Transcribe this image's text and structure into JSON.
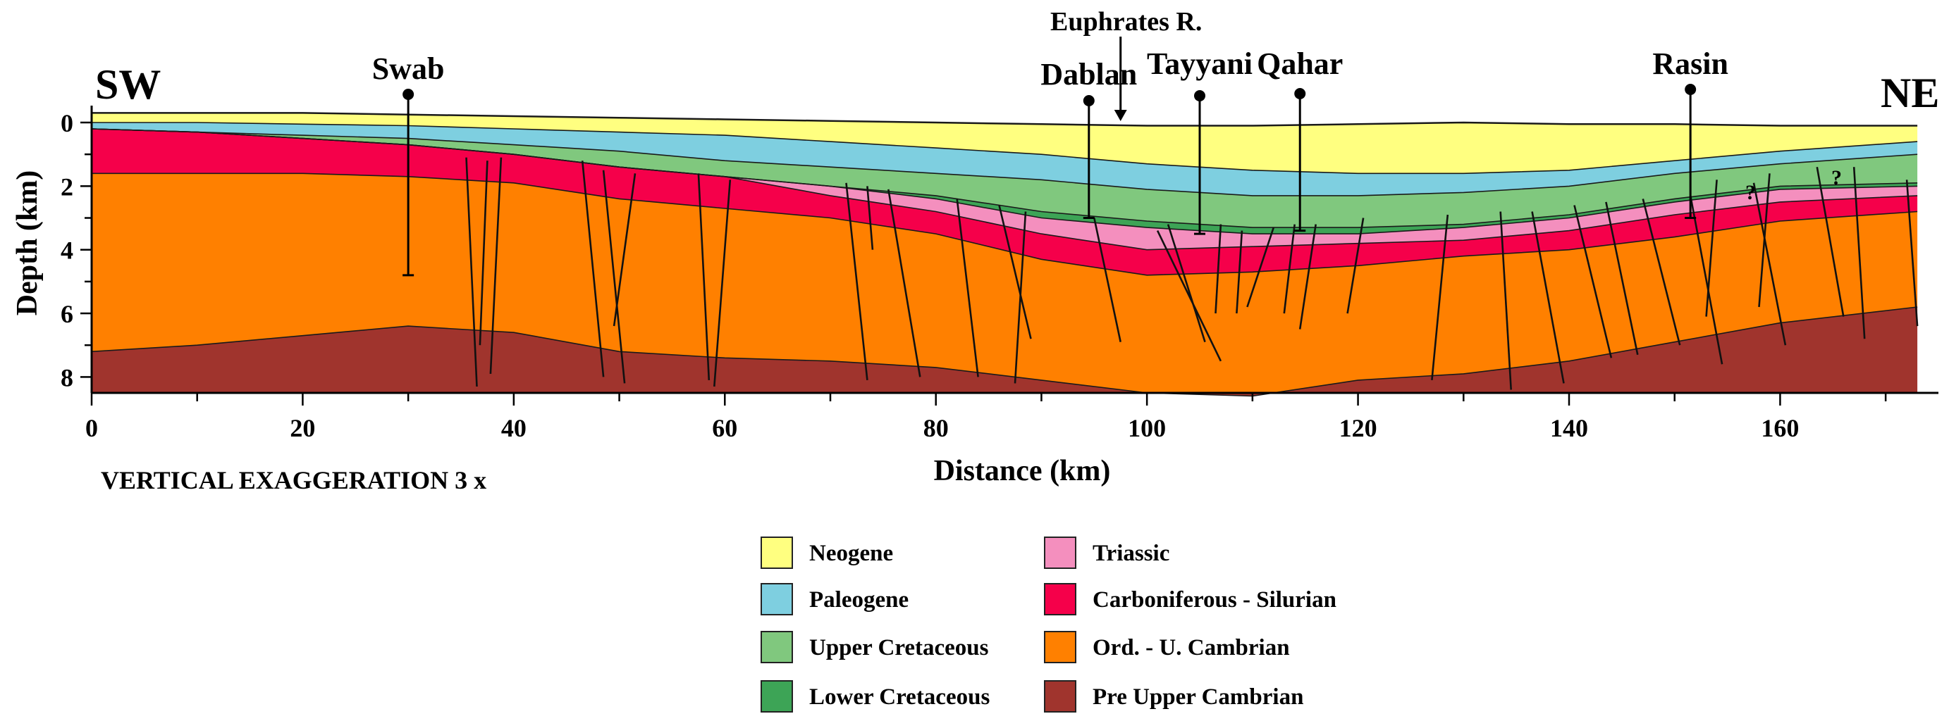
{
  "title_text": {
    "left_end": "SW",
    "right_end": "NE",
    "river": "Euphrates R."
  },
  "wells": [
    {
      "name": "Swab",
      "distance_km": 30,
      "td_km": 4.8
    },
    {
      "name": "Dablan",
      "distance_km": 94.5,
      "td_km": 3.0
    },
    {
      "name": "Tayyani",
      "distance_km": 105,
      "td_km": 3.5
    },
    {
      "name": "Qahar",
      "distance_km": 114.5,
      "td_km": 3.4
    },
    {
      "name": "Rasin",
      "distance_km": 151.5,
      "td_km": 3.0
    }
  ],
  "river_km": 97.5,
  "axes": {
    "xlabel": "Distance (km)",
    "ylabel": "Depth (km)",
    "xlim": [
      0,
      173
    ],
    "ylim": [
      8.5,
      0
    ],
    "xticks": [
      "0",
      "20",
      "40",
      "60",
      "80",
      "100",
      "120",
      "140",
      "160"
    ],
    "yticks": [
      "0",
      "2",
      "4",
      "6",
      "8"
    ]
  },
  "note": "VERTICAL EXAGGERATION  3 x",
  "question_marks": [
    "?",
    "?"
  ],
  "legend": [
    {
      "label": "Neogene",
      "color": "#FFFF80"
    },
    {
      "label": "Paleogene",
      "color": "#7ECFE0"
    },
    {
      "label": "Upper Cretaceous",
      "color": "#80C87E"
    },
    {
      "label": "Lower Cretaceous",
      "color": "#3DA456"
    },
    {
      "label": "Triassic",
      "color": "#F48FBE"
    },
    {
      "label": "Carboniferous - Silurian",
      "color": "#F5004A"
    },
    {
      "label": "Ord. - U. Cambrian",
      "color": "#FF8000"
    },
    {
      "label": "Pre Upper Cambrian",
      "color": "#A0342D"
    }
  ],
  "chart_data": {
    "type": "geologic cross-section",
    "x_km": [
      0,
      10,
      20,
      30,
      40,
      50,
      60,
      70,
      80,
      90,
      100,
      110,
      120,
      130,
      140,
      150,
      160,
      173
    ],
    "horizons": [
      {
        "name": "Surface",
        "depth_km": [
          -0.3,
          -0.3,
          -0.3,
          -0.25,
          -0.2,
          -0.15,
          -0.1,
          -0.05,
          0,
          0.05,
          0.1,
          0.1,
          0.05,
          0,
          0.05,
          0.05,
          0.1,
          0.1
        ]
      },
      {
        "name": "Base Neogene",
        "depth_km": [
          0,
          0,
          0.05,
          0.1,
          0.2,
          0.3,
          0.4,
          0.6,
          0.8,
          1.0,
          1.3,
          1.5,
          1.6,
          1.6,
          1.5,
          1.2,
          0.9,
          0.6
        ]
      },
      {
        "name": "Base Paleogene",
        "depth_km": [
          0.2,
          0.3,
          0.4,
          0.5,
          0.7,
          0.9,
          1.2,
          1.4,
          1.6,
          1.8,
          2.1,
          2.3,
          2.3,
          2.2,
          2.0,
          1.6,
          1.3,
          1.0
        ]
      },
      {
        "name": "Base Upper Cretaceous",
        "depth_km": [
          0.2,
          0.3,
          0.5,
          0.7,
          1.0,
          1.4,
          1.7,
          2.0,
          2.3,
          2.8,
          3.1,
          3.3,
          3.3,
          3.2,
          2.9,
          2.4,
          2.0,
          1.9
        ]
      },
      {
        "name": "Base Lower Cretaceous",
        "depth_km": [
          0.2,
          0.3,
          0.5,
          0.7,
          1.0,
          1.4,
          1.7,
          2.0,
          2.4,
          3.0,
          3.3,
          3.5,
          3.5,
          3.3,
          3.0,
          2.5,
          2.1,
          2.0
        ]
      },
      {
        "name": "Base Triassic",
        "depth_km": [
          0.2,
          0.3,
          0.5,
          0.7,
          1.0,
          1.4,
          1.7,
          2.3,
          2.8,
          3.5,
          4.0,
          3.9,
          3.8,
          3.7,
          3.4,
          2.9,
          2.5,
          2.3
        ]
      },
      {
        "name": "Base Carboniferous - Silurian",
        "depth_km": [
          1.6,
          1.6,
          1.6,
          1.7,
          1.9,
          2.4,
          2.7,
          3.0,
          3.5,
          4.3,
          4.8,
          4.7,
          4.5,
          4.2,
          4.0,
          3.6,
          3.1,
          2.8
        ]
      },
      {
        "name": "Base Ord. - U. Cambrian",
        "depth_km": [
          7.2,
          7.0,
          6.7,
          6.4,
          6.6,
          7.2,
          7.4,
          7.5,
          7.7,
          8.1,
          8.5,
          8.6,
          8.1,
          7.9,
          7.5,
          6.9,
          6.3,
          5.8
        ]
      },
      {
        "name": "Base",
        "depth_km": [
          8.5,
          8.5,
          8.5,
          8.5,
          8.5,
          8.5,
          8.5,
          8.5,
          8.5,
          8.5,
          8.5,
          8.5,
          8.5,
          8.5,
          8.5,
          8.5,
          8.5,
          8.5
        ]
      }
    ],
    "faults_km": [
      {
        "top": [
          35.5,
          1.1
        ],
        "bottom": [
          36.5,
          8.3
        ]
      },
      {
        "top": [
          37.5,
          1.2
        ],
        "bottom": [
          36.8,
          7.0
        ]
      },
      {
        "top": [
          38.8,
          1.1
        ],
        "bottom": [
          37.8,
          7.9
        ]
      },
      {
        "top": [
          46.5,
          1.2
        ],
        "bottom": [
          48.5,
          8.0
        ]
      },
      {
        "top": [
          48.5,
          1.5
        ],
        "bottom": [
          50.5,
          8.2
        ]
      },
      {
        "top": [
          51.5,
          1.6
        ],
        "bottom": [
          49.5,
          6.4
        ]
      },
      {
        "top": [
          57.5,
          1.6
        ],
        "bottom": [
          58.5,
          8.1
        ]
      },
      {
        "top": [
          60.5,
          1.8
        ],
        "bottom": [
          59.0,
          8.3
        ]
      },
      {
        "top": [
          71.5,
          1.9
        ],
        "bottom": [
          73.5,
          8.1
        ]
      },
      {
        "top": [
          73.5,
          2.0
        ],
        "bottom": [
          74.0,
          4.0
        ]
      },
      {
        "top": [
          75.5,
          2.1
        ],
        "bottom": [
          78.5,
          8.0
        ]
      },
      {
        "top": [
          82.0,
          2.4
        ],
        "bottom": [
          84.0,
          8.0
        ]
      },
      {
        "top": [
          86.0,
          2.6
        ],
        "bottom": [
          89.0,
          6.8
        ]
      },
      {
        "top": [
          88.5,
          2.8
        ],
        "bottom": [
          87.5,
          8.2
        ]
      },
      {
        "top": [
          95.0,
          3.0
        ],
        "bottom": [
          97.5,
          6.9
        ]
      },
      {
        "top": [
          101.0,
          3.4
        ],
        "bottom": [
          107.0,
          7.5
        ]
      },
      {
        "top": [
          102.0,
          3.2
        ],
        "bottom": [
          105.5,
          6.9
        ]
      },
      {
        "top": [
          107.0,
          3.2
        ],
        "bottom": [
          106.5,
          6.0
        ]
      },
      {
        "top": [
          109.0,
          3.4
        ],
        "bottom": [
          108.5,
          6.0
        ]
      },
      {
        "top": [
          112.0,
          3.3
        ],
        "bottom": [
          109.5,
          5.8
        ]
      },
      {
        "top": [
          114.0,
          3.2
        ],
        "bottom": [
          113.0,
          6.0
        ]
      },
      {
        "top": [
          116.0,
          3.2
        ],
        "bottom": [
          114.5,
          6.5
        ]
      },
      {
        "top": [
          120.5,
          3.0
        ],
        "bottom": [
          119.0,
          6.0
        ]
      },
      {
        "top": [
          128.5,
          2.9
        ],
        "bottom": [
          127.0,
          8.1
        ]
      },
      {
        "top": [
          133.5,
          2.8
        ],
        "bottom": [
          134.5,
          8.4
        ]
      },
      {
        "top": [
          136.5,
          2.8
        ],
        "bottom": [
          139.5,
          8.2
        ]
      },
      {
        "top": [
          140.5,
          2.6
        ],
        "bottom": [
          144.0,
          7.4
        ]
      },
      {
        "top": [
          143.5,
          2.5
        ],
        "bottom": [
          146.5,
          7.3
        ]
      },
      {
        "top": [
          147.0,
          2.4
        ],
        "bottom": [
          150.5,
          7.0
        ]
      },
      {
        "top": [
          151.5,
          2.3
        ],
        "bottom": [
          154.5,
          7.6
        ]
      },
      {
        "top": [
          154.0,
          1.8
        ],
        "bottom": [
          153.0,
          6.1
        ]
      },
      {
        "top": [
          157.5,
          1.9
        ],
        "bottom": [
          160.5,
          7.0
        ]
      },
      {
        "top": [
          159.0,
          1.6
        ],
        "bottom": [
          158.0,
          5.8
        ]
      },
      {
        "top": [
          163.5,
          1.4
        ],
        "bottom": [
          166.0,
          6.1
        ]
      },
      {
        "top": [
          167.0,
          1.4
        ],
        "bottom": [
          168.0,
          6.8
        ]
      },
      {
        "top": [
          172.0,
          1.8
        ],
        "bottom": [
          173.0,
          6.4
        ]
      }
    ]
  }
}
